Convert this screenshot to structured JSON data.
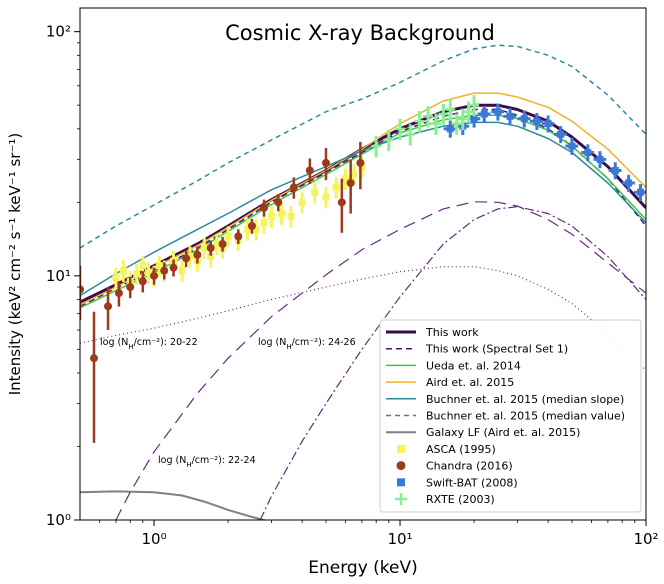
{
  "chart_data": {
    "type": "line",
    "title": "Cosmic X-ray Background",
    "xlabel": "Energy (keV)",
    "ylabel": "Intensity (keV² cm⁻² s⁻¹ keV⁻¹ sr⁻¹)",
    "xscale": "log",
    "yscale": "log",
    "xlim": [
      0.5,
      100
    ],
    "ylim": [
      1,
      125
    ],
    "grid": false,
    "legend_position": "bottom-right",
    "x_ticks": [
      {
        "value": 1,
        "label": "10⁰"
      },
      {
        "value": 10,
        "label": "10¹"
      },
      {
        "value": 100,
        "label": "10²"
      }
    ],
    "y_ticks": [
      {
        "value": 1,
        "label": "10⁰"
      },
      {
        "value": 10,
        "label": "10¹"
      },
      {
        "value": 100,
        "label": "10²"
      }
    ],
    "annotations": {
      "nh_20_22": "log (N<sub>H</sub>/cm⁻²): 20-22",
      "nh_24_26": "log (N<sub>H</sub>/cm⁻²): 24-26",
      "nh_22_24": "log (N<sub>H</sub>/cm⁻²): 22-24"
    },
    "series": [
      {
        "name": "This work",
        "kind": "line",
        "color": "#3b0a4f",
        "dash": "",
        "width": 3,
        "x": [
          0.5,
          0.7,
          1,
          1.5,
          2,
          3,
          5,
          7,
          10,
          15,
          20,
          25,
          30,
          40,
          50,
          70,
          100
        ],
        "y": [
          7.8,
          9.2,
          11,
          13.5,
          16,
          20.5,
          27,
          33,
          40,
          47,
          50,
          50,
          48,
          43,
          37,
          28,
          19
        ]
      },
      {
        "name": "This work (Spectral Set 1)",
        "kind": "line",
        "color": "#4a1a5e",
        "dash": "6,4",
        "width": 1.5,
        "x": [
          0.5,
          0.7,
          1,
          1.5,
          2,
          3,
          5,
          7,
          10,
          15,
          20,
          25,
          30,
          40,
          50,
          70,
          100
        ],
        "y": [
          7.5,
          8.9,
          10.5,
          13,
          15.5,
          20,
          26.5,
          32,
          39,
          45,
          48,
          48,
          45.5,
          40,
          34,
          25,
          16
        ]
      },
      {
        "name": "Ueda et. al. 2014",
        "kind": "line",
        "color": "#3cc84a",
        "dash": "",
        "width": 1.5,
        "x": [
          0.5,
          0.7,
          1,
          1.5,
          2,
          3,
          5,
          7,
          10,
          15,
          20,
          25,
          30,
          40,
          50,
          70,
          100
        ],
        "y": [
          7.4,
          8.7,
          10.3,
          12.8,
          15.2,
          19.6,
          26,
          31.5,
          38.5,
          43.5,
          45.5,
          45.5,
          44,
          39.5,
          34,
          25,
          17
        ]
      },
      {
        "name": "Aird et. al. 2015",
        "kind": "line",
        "color": "#f0b22c",
        "dash": "",
        "width": 1.5,
        "x": [
          0.5,
          0.7,
          1,
          1.5,
          2,
          3,
          5,
          7,
          10,
          15,
          20,
          25,
          30,
          40,
          50,
          70,
          100
        ],
        "y": [
          7.6,
          9.0,
          10.8,
          13.3,
          15.8,
          20.4,
          27,
          33,
          42,
          52,
          56,
          56,
          54,
          49,
          43,
          33,
          23
        ]
      },
      {
        "name": "Buchner et. al. 2015 (median slope)",
        "kind": "line",
        "color": "#2f8a9e",
        "dash": "",
        "width": 1.5,
        "x": [
          0.5,
          0.7,
          1,
          1.5,
          2,
          3,
          5,
          7,
          10,
          15,
          20,
          25,
          30,
          40,
          50,
          70,
          100
        ],
        "y": [
          8.3,
          10.2,
          12.5,
          15.5,
          18,
          22.5,
          28,
          32.5,
          37,
          41,
          42.5,
          42.5,
          41,
          36.5,
          32,
          24,
          16.5
        ]
      },
      {
        "name": "Buchner et. al. 2015 (median value)",
        "kind": "line",
        "color": "#2f8a9e",
        "dash": "5,4",
        "width": 1.5,
        "x": [
          0.5,
          0.7,
          1,
          1.5,
          2,
          3,
          5,
          7,
          10,
          15,
          20,
          25,
          30,
          40,
          50,
          70,
          100
        ],
        "y": [
          13,
          16,
          19.5,
          24.5,
          29,
          36,
          47,
          53,
          62,
          76,
          85,
          88,
          87,
          80,
          72,
          55,
          38
        ]
      },
      {
        "name": "Galaxy LF (Aird et. al. 2015)",
        "kind": "line",
        "color": "#808080",
        "dash": "",
        "width": 2,
        "x": [
          0.5,
          0.7,
          1,
          1.3,
          1.6,
          2,
          2.5,
          3
        ],
        "y": [
          1.3,
          1.31,
          1.3,
          1.26,
          1.19,
          1.1,
          1.03,
          0.98
        ]
      },
      {
        "name": "",
        "kind": "component",
        "color": "#6a2a7e",
        "dash": "1,3",
        "width": 1.2,
        "x": [
          0.5,
          0.7,
          1,
          1.5,
          2,
          3,
          5,
          7,
          10,
          15,
          20,
          25,
          30,
          40,
          50,
          70,
          100
        ],
        "y": [
          5.3,
          5.7,
          6.1,
          6.7,
          7.2,
          8,
          9,
          9.7,
          10.4,
          10.9,
          10.9,
          10.5,
          10,
          8.8,
          7.7,
          5.8,
          4.1
        ]
      },
      {
        "name": "",
        "kind": "component",
        "color": "#6a2a7e",
        "dash": "12,7",
        "width": 1.2,
        "x": [
          0.7,
          0.8,
          1,
          1.5,
          2,
          3,
          5,
          7,
          10,
          15,
          20,
          25,
          30,
          40,
          50,
          70,
          100
        ],
        "y": [
          1.0,
          1.3,
          1.9,
          3.3,
          4.6,
          6.8,
          10.1,
          12.8,
          15.5,
          18.8,
          20.1,
          20,
          19.3,
          17,
          14.8,
          11.3,
          8.5
        ]
      },
      {
        "name": "",
        "kind": "component",
        "color": "#6a2a7e",
        "dash": "9,3,2,3",
        "width": 1.2,
        "x": [
          2.7,
          3,
          4,
          5,
          7,
          10,
          15,
          20,
          25,
          30,
          40,
          50,
          70,
          100
        ],
        "y": [
          1.0,
          1.25,
          2.1,
          3.0,
          5.0,
          8.2,
          13.5,
          17,
          18.8,
          19.2,
          18,
          16,
          12,
          8
        ]
      },
      {
        "name": "ASCA (1995)",
        "kind": "points",
        "marker": "square",
        "color": "#f7f35b",
        "x": [
          0.7,
          0.75,
          0.8,
          0.85,
          0.9,
          0.95,
          1.0,
          1.05,
          1.1,
          1.2,
          1.3,
          1.4,
          1.5,
          1.6,
          1.7,
          1.8,
          1.9,
          2.0,
          2.2,
          2.4,
          2.6,
          2.8,
          3.0,
          3.3,
          3.6,
          4.0,
          4.5,
          5.0,
          5.5,
          6.0,
          6.5,
          7.0
        ],
        "y": [
          9.8,
          10.5,
          9.5,
          10.2,
          11,
          10.3,
          10,
          11,
          10.5,
          11.5,
          10.5,
          12,
          11.5,
          13,
          12,
          13.5,
          13,
          14.5,
          14,
          15.5,
          15.5,
          16.5,
          17.5,
          18,
          17.5,
          20,
          22,
          21,
          23,
          25,
          26,
          28
        ],
        "yerr_frac": 0.1
      },
      {
        "name": "Chandra (2016)",
        "kind": "points",
        "marker": "circle",
        "color": "#9c3a1b",
        "x": [
          0.5,
          0.57,
          0.65,
          0.72,
          0.8,
          0.9,
          1.0,
          1.1,
          1.2,
          1.35,
          1.5,
          1.7,
          1.9,
          2.2,
          2.5,
          2.8,
          3.2,
          3.7,
          4.3,
          5.0,
          5.8,
          6.3,
          6.9
        ],
        "y": [
          8.8,
          4.6,
          7.5,
          8.5,
          9.0,
          9.5,
          10,
          10.5,
          10.8,
          11.8,
          12.2,
          13,
          13.5,
          14.5,
          16,
          19,
          20,
          23,
          27,
          29,
          20,
          24,
          29
        ],
        "yerr_frac": [
          0.25,
          0.55,
          0.2,
          0.12,
          0.1,
          0.1,
          0.08,
          0.08,
          0.08,
          0.08,
          0.08,
          0.07,
          0.07,
          0.07,
          0.07,
          0.08,
          0.08,
          0.1,
          0.12,
          0.15,
          0.25,
          0.25,
          0.22
        ]
      },
      {
        "name": "Swift-BAT (2008)",
        "kind": "points",
        "marker": "square",
        "color": "#3a78d8",
        "x": [
          16,
          18,
          20,
          22,
          25,
          28,
          32,
          36,
          40,
          45,
          50,
          58,
          65,
          75,
          85,
          95
        ],
        "y": [
          40,
          41,
          44,
          46,
          47,
          45,
          44,
          43,
          42,
          38,
          34,
          32,
          30,
          27,
          24,
          22
        ],
        "yerr_frac": 0.08,
        "xerr_frac": 0.06
      },
      {
        "name": "RXTE (2003)",
        "kind": "points",
        "marker": "plus",
        "color": "#8af08f",
        "x": [
          8,
          9,
          10,
          11,
          12,
          13,
          14,
          15,
          16,
          17,
          18,
          19,
          20
        ],
        "y": [
          34,
          36,
          40,
          38,
          43,
          45,
          42,
          46,
          48,
          42,
          44,
          47,
          50
        ],
        "yerr_frac": 0.1
      }
    ]
  }
}
